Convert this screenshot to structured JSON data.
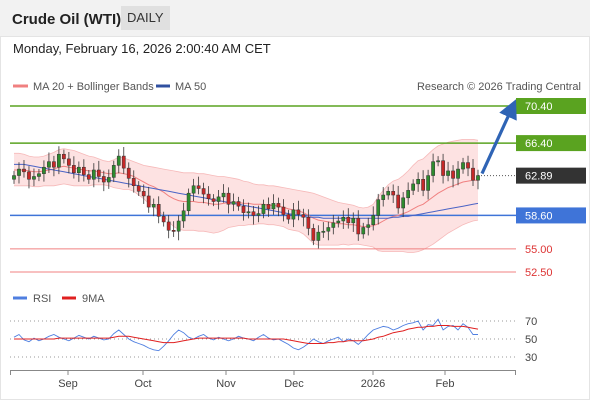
{
  "header": {
    "title": "Crude Oil (WTI)",
    "timeframe": "DAILY"
  },
  "datetime": "Monday, February 16, 2026 2:00:40 AM CET",
  "legend": {
    "ma20": "MA 20 + Bollinger Bands",
    "ma50": "MA 50",
    "research": "Research © 2026 Trading Central"
  },
  "rsi_legend": {
    "rsi": "RSI",
    "ma9": "9MA"
  },
  "colors": {
    "resistance": "#5aa320",
    "support": "#3f74d8",
    "support_light": "#f08080",
    "last_price": "#333333",
    "target_arrow": "#2f64b5",
    "bollinger_fill": "#fde2e2",
    "ma20": "#f08080",
    "ma50": "#4a63c5",
    "candle_up": "#2e8b2e",
    "candle_down": "#c62828",
    "rsi": "#4f7fe0",
    "rsi_ma": "#e02020"
  },
  "chart_data": {
    "type": "candlestick",
    "series_name": "Crude Oil (WTI)",
    "timeframe": "DAILY",
    "x_tick_labels": [
      "Sep",
      "Oct",
      "Nov",
      "Dec",
      "2026",
      "Feb"
    ],
    "price_levels": [
      {
        "value": 70.4,
        "label": "70.40",
        "kind": "resistance"
      },
      {
        "value": 66.4,
        "label": "66.40",
        "kind": "resistance"
      },
      {
        "value": 62.89,
        "label": "62.89",
        "kind": "last"
      },
      {
        "value": 58.6,
        "label": "58.60",
        "kind": "support"
      },
      {
        "value": 55.0,
        "label": "55.00",
        "kind": "support_light"
      },
      {
        "value": 52.5,
        "label": "52.50",
        "kind": "support_light"
      }
    ],
    "close_series": [
      62.9,
      63.6,
      63.3,
      62.5,
      62.8,
      63.1,
      63.8,
      64.4,
      63.8,
      65.2,
      64.7,
      64.0,
      63.2,
      63.8,
      63.0,
      62.5,
      63.5,
      62.8,
      62.2,
      62.7,
      64.0,
      65.0,
      63.7,
      62.6,
      61.8,
      61.2,
      60.7,
      59.5,
      59.8,
      58.5,
      57.9,
      57.0,
      56.9,
      58.0,
      59.1,
      61.0,
      61.8,
      61.5,
      60.9,
      60.4,
      60.1,
      60.6,
      61.0,
      59.8,
      60.1,
      59.6,
      58.9,
      59.0,
      58.6,
      58.8,
      59.8,
      59.3,
      59.9,
      59.5,
      58.7,
      58.2,
      59.2,
      58.7,
      58.4,
      57.2,
      55.9,
      56.8,
      56.9,
      57.3,
      57.8,
      58.0,
      58.4,
      57.8,
      58.3,
      56.6,
      57.3,
      57.6,
      58.6,
      60.3,
      60.8,
      61.2,
      60.8,
      59.4,
      60.5,
      61.3,
      62.0,
      62.5,
      61.3,
      62.9,
      64.4,
      64.5,
      62.9,
      63.4,
      62.6,
      63.6,
      64.3,
      63.7,
      62.4,
      62.9
    ],
    "ma20_series": [
      63.5,
      63.5,
      63.5,
      63.4,
      63.3,
      63.3,
      63.4,
      63.5,
      63.6,
      63.8,
      63.9,
      63.8,
      63.7,
      63.6,
      63.5,
      63.4,
      63.4,
      63.3,
      63.2,
      63.1,
      63.1,
      63.2,
      63.1,
      63.0,
      62.8,
      62.5,
      62.2,
      61.9,
      61.7,
      61.4,
      61.1,
      60.7,
      60.4,
      60.2,
      60.1,
      60.1,
      60.1,
      60.0,
      60.0,
      59.9,
      59.8,
      59.8,
      59.9,
      60.0,
      60.0,
      60.0,
      59.9,
      59.9,
      59.8,
      59.8,
      59.8,
      59.7,
      59.7,
      59.6,
      59.5,
      59.3,
      59.2,
      59.1,
      58.9,
      58.6,
      58.3,
      58.1,
      58.0,
      57.9,
      57.8,
      57.7,
      57.7,
      57.6,
      57.6,
      57.5,
      57.4,
      57.4,
      57.5,
      57.7,
      58.0,
      58.3,
      58.5,
      58.6,
      58.8,
      59.0,
      59.3,
      59.6,
      59.8,
      60.2,
      60.6,
      61.0,
      61.3,
      61.6,
      61.8,
      62.0,
      62.2,
      62.3,
      62.4,
      62.4
    ],
    "bb_upper_series": [
      65.3,
      65.3,
      65.2,
      65.0,
      64.9,
      64.9,
      65.0,
      65.2,
      65.4,
      65.7,
      65.8,
      65.7,
      65.6,
      65.4,
      65.2,
      65.0,
      64.9,
      64.7,
      64.5,
      64.4,
      64.6,
      64.9,
      64.8,
      64.6,
      64.4,
      64.2,
      64.0,
      63.9,
      63.8,
      63.7,
      63.6,
      63.5,
      63.4,
      63.3,
      63.2,
      63.2,
      63.2,
      63.1,
      63.1,
      63.0,
      62.9,
      62.8,
      62.8,
      62.7,
      62.6,
      62.5,
      62.3,
      62.2,
      62.0,
      61.9,
      61.9,
      61.8,
      61.8,
      61.7,
      61.6,
      61.5,
      61.4,
      61.3,
      61.2,
      61.1,
      61.0,
      60.8,
      60.6,
      60.4,
      60.2,
      60.0,
      59.9,
      59.8,
      59.7,
      59.5,
      59.4,
      59.5,
      59.8,
      60.6,
      61.3,
      61.9,
      62.3,
      62.5,
      62.9,
      63.4,
      64.0,
      64.5,
      64.7,
      65.2,
      65.7,
      66.1,
      66.3,
      66.5,
      66.6,
      66.7,
      66.8,
      66.8,
      66.8,
      66.7
    ],
    "bb_lower_series": [
      61.8,
      61.8,
      61.8,
      61.8,
      61.7,
      61.7,
      61.8,
      61.8,
      61.8,
      61.9,
      62.0,
      61.9,
      61.8,
      61.8,
      61.8,
      61.8,
      61.9,
      61.9,
      61.9,
      61.8,
      61.6,
      61.5,
      61.4,
      61.4,
      61.2,
      60.8,
      60.4,
      59.9,
      59.6,
      59.1,
      58.6,
      57.9,
      57.4,
      57.1,
      57.0,
      57.0,
      57.0,
      56.9,
      56.9,
      56.8,
      56.7,
      56.8,
      57.0,
      57.3,
      57.4,
      57.5,
      57.5,
      57.6,
      57.6,
      57.7,
      57.7,
      57.6,
      57.6,
      57.5,
      57.4,
      57.1,
      57.0,
      56.9,
      56.6,
      56.1,
      55.6,
      55.4,
      55.4,
      55.4,
      55.4,
      55.4,
      55.5,
      55.4,
      55.5,
      55.5,
      55.4,
      55.3,
      55.2,
      54.8,
      54.7,
      54.7,
      54.7,
      54.7,
      54.7,
      54.6,
      54.6,
      54.7,
      54.9,
      55.2,
      55.5,
      55.9,
      56.3,
      56.7,
      57.0,
      57.3,
      57.6,
      57.8,
      58.0,
      58.1
    ],
    "ma50_series": [
      64.1,
      64.1,
      64.1,
      64.0,
      63.9,
      63.8,
      63.7,
      63.6,
      63.5,
      63.4,
      63.3,
      63.2,
      63.1,
      63.0,
      62.9,
      62.8,
      62.7,
      62.6,
      62.5,
      62.4,
      62.3,
      62.2,
      62.1,
      62.0,
      61.9,
      61.8,
      61.7,
      61.6,
      61.5,
      61.4,
      61.3,
      61.2,
      61.1,
      61.0,
      60.9,
      60.8,
      60.7,
      60.6,
      60.5,
      60.4,
      60.3,
      60.2,
      60.1,
      60.0,
      59.9,
      59.8,
      59.7,
      59.6,
      59.5,
      59.4,
      59.3,
      59.2,
      59.1,
      59.0,
      58.9,
      58.8,
      58.7,
      58.6,
      58.5,
      58.4,
      58.4,
      58.4,
      58.3,
      58.3,
      58.3,
      58.3,
      58.3,
      58.3,
      58.3,
      58.3,
      58.3,
      58.3,
      58.3,
      58.3,
      58.3,
      58.3,
      58.4,
      58.4,
      58.5,
      58.5,
      58.6,
      58.7,
      58.8,
      58.9,
      59.0,
      59.1,
      59.2,
      59.3,
      59.4,
      59.5,
      59.6,
      59.7,
      59.8,
      59.9
    ],
    "projection_target": 70.4,
    "rsi": {
      "levels": [
        70,
        50,
        30
      ],
      "rsi_series": [
        52,
        55,
        49,
        47,
        51,
        48,
        50,
        53,
        55,
        52,
        50,
        48,
        51,
        54,
        52,
        50,
        53,
        51,
        49,
        50,
        56,
        60,
        55,
        50,
        47,
        45,
        43,
        40,
        38,
        37,
        42,
        48,
        55,
        60,
        57,
        52,
        50,
        53,
        55,
        51,
        49,
        52,
        50,
        48,
        50,
        53,
        51,
        50,
        48,
        52,
        55,
        51,
        49,
        50,
        47,
        44,
        40,
        38,
        41,
        45,
        50,
        47,
        45,
        48,
        50,
        52,
        47,
        50,
        48,
        44,
        49,
        55,
        60,
        62,
        64,
        63,
        60,
        62,
        65,
        67,
        68,
        70,
        60,
        66,
        65,
        72,
        60,
        64,
        65,
        60,
        67,
        63,
        55,
        55
      ],
      "ma9_series": [
        50,
        50,
        50,
        50,
        50,
        50,
        50,
        50,
        50,
        51,
        51,
        51,
        51,
        51,
        51,
        51,
        51,
        51,
        51,
        51,
        52,
        53,
        53,
        53,
        52,
        51,
        50,
        49,
        48,
        47,
        46,
        46,
        46,
        47,
        48,
        49,
        50,
        51,
        51,
        51,
        51,
        51,
        51,
        51,
        51,
        51,
        51,
        50,
        50,
        50,
        50,
        50,
        50,
        50,
        50,
        49,
        48,
        47,
        46,
        45,
        45,
        45,
        45,
        46,
        46,
        47,
        47,
        48,
        48,
        48,
        48,
        49,
        50,
        52,
        53,
        55,
        57,
        58,
        59,
        61,
        62,
        63,
        63,
        64,
        64,
        65,
        65,
        65,
        64,
        64,
        64,
        63,
        62,
        61
      ]
    }
  }
}
